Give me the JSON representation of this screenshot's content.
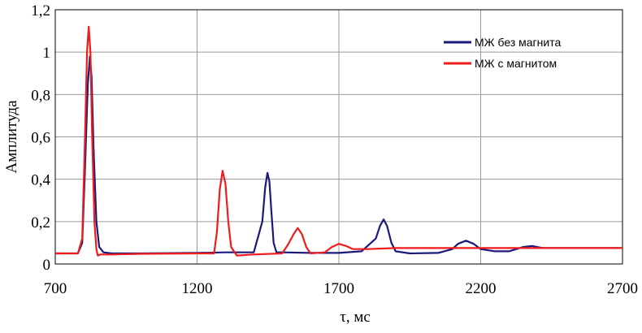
{
  "chart_data": {
    "type": "line",
    "xlabel": "τ, мс",
    "ylabel": "Амплитуда",
    "xlim": [
      700,
      2700
    ],
    "ylim": [
      0,
      1.2
    ],
    "x_ticks": [
      700,
      1200,
      1700,
      2200,
      2700
    ],
    "x_tick_labels": [
      "700",
      "1200",
      "1700",
      "2200",
      "2700"
    ],
    "y_ticks": [
      0,
      0.2,
      0.4,
      0.6,
      0.8,
      1.0,
      1.2
    ],
    "y_tick_labels": [
      "0",
      "0,2",
      "0,4",
      "0,6",
      "0,8",
      "1",
      "1,2"
    ],
    "grid": true,
    "legend_position": "top-right",
    "series": [
      {
        "name": "МЖ без магнита",
        "color": "#1a1a7a",
        "x": [
          700,
          780,
          795,
          805,
          815,
          822,
          828,
          835,
          845,
          855,
          870,
          900,
          1000,
          1200,
          1300,
          1400,
          1430,
          1440,
          1448,
          1455,
          1462,
          1470,
          1480,
          1500,
          1600,
          1700,
          1780,
          1830,
          1845,
          1858,
          1870,
          1885,
          1900,
          1950,
          2050,
          2100,
          2120,
          2148,
          2175,
          2200,
          2250,
          2300,
          2350,
          2380,
          2420,
          2500,
          2600,
          2700
        ],
        "y": [
          0.05,
          0.05,
          0.1,
          0.45,
          0.85,
          0.98,
          0.88,
          0.55,
          0.2,
          0.08,
          0.055,
          0.05,
          0.05,
          0.052,
          0.055,
          0.055,
          0.2,
          0.36,
          0.43,
          0.39,
          0.25,
          0.1,
          0.055,
          0.055,
          0.052,
          0.052,
          0.06,
          0.12,
          0.18,
          0.21,
          0.18,
          0.1,
          0.06,
          0.05,
          0.052,
          0.07,
          0.095,
          0.11,
          0.095,
          0.07,
          0.06,
          0.06,
          0.08,
          0.085,
          0.075,
          0.075,
          0.075,
          0.075
        ]
      },
      {
        "name": "МЖ с магнитом",
        "color": "#ee1c1c",
        "x": [
          700,
          780,
          795,
          805,
          812,
          818,
          824,
          830,
          838,
          845,
          850,
          860,
          900,
          1000,
          1200,
          1260,
          1270,
          1280,
          1290,
          1300,
          1310,
          1320,
          1340,
          1400,
          1500,
          1520,
          1540,
          1555,
          1570,
          1585,
          1600,
          1650,
          1675,
          1700,
          1725,
          1750,
          1800,
          1900,
          2000,
          2100,
          2200,
          2300,
          2400,
          2500,
          2600,
          2700
        ],
        "y": [
          0.05,
          0.05,
          0.12,
          0.6,
          1.0,
          1.12,
          1.0,
          0.6,
          0.2,
          0.07,
          0.04,
          0.045,
          0.045,
          0.048,
          0.05,
          0.05,
          0.15,
          0.35,
          0.44,
          0.38,
          0.2,
          0.08,
          0.04,
          0.045,
          0.05,
          0.09,
          0.14,
          0.17,
          0.14,
          0.08,
          0.05,
          0.055,
          0.08,
          0.095,
          0.085,
          0.07,
          0.07,
          0.075,
          0.075,
          0.075,
          0.075,
          0.075,
          0.075,
          0.075,
          0.075,
          0.075
        ]
      }
    ]
  }
}
